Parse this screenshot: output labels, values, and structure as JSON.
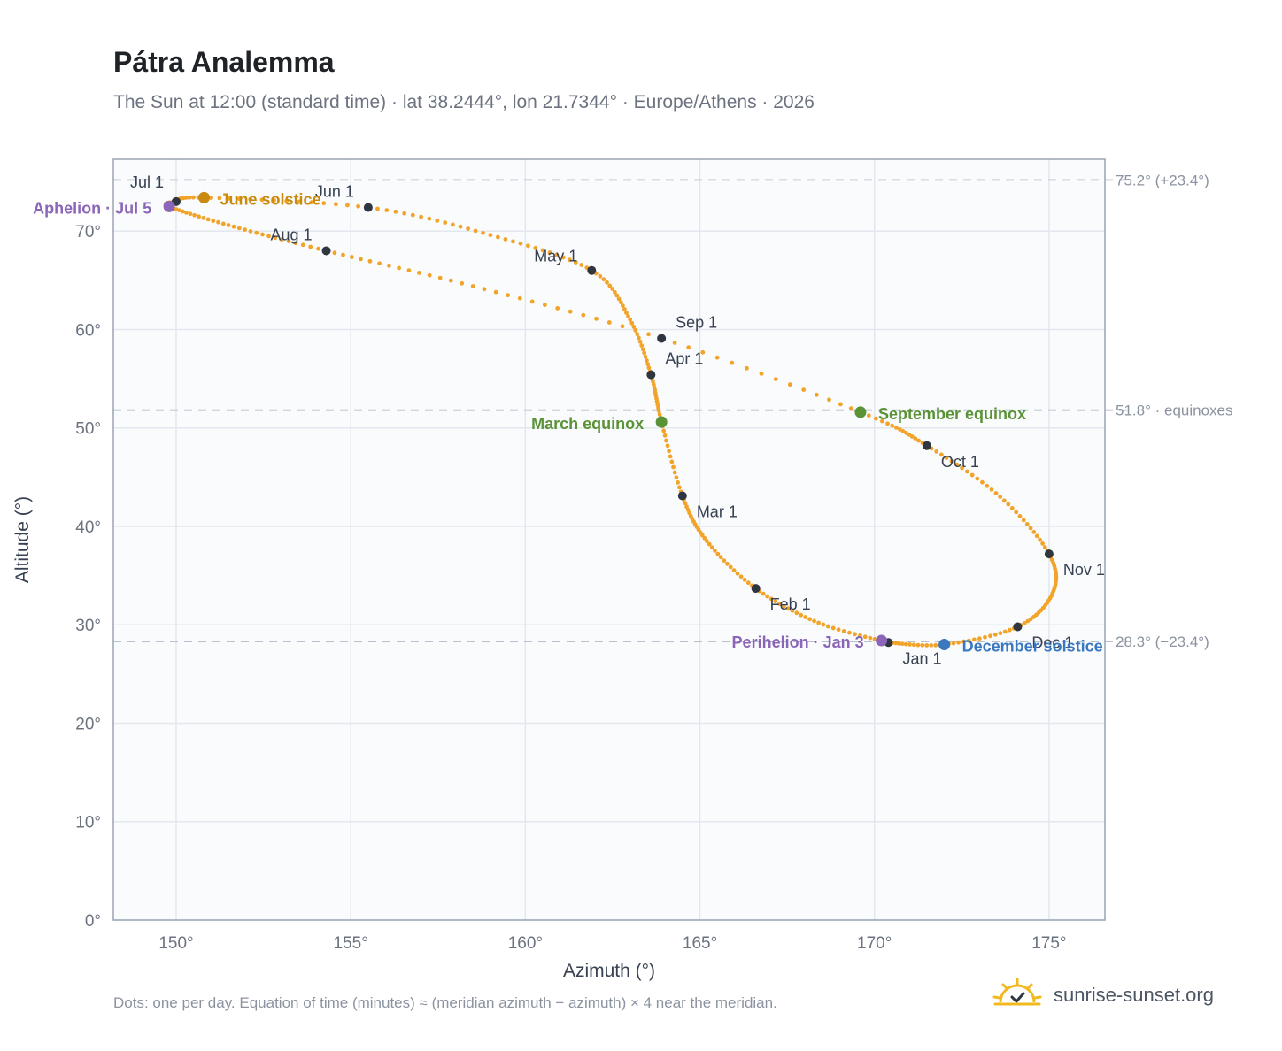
{
  "header": {
    "title": "Pátra Analemma",
    "subtitle": "The Sun at 12:00 (standard time) · lat 38.2444°, lon 21.7344° · Europe/Athens · 2026"
  },
  "footer": {
    "note": "Dots: one per day. Equation of time (minutes) ≈ (meridian azimuth − azimuth) × 4 near the meridian.",
    "brand": "sunrise-sunset.org",
    "brand_icon": "sun-logo-icon"
  },
  "colors": {
    "path": "#f2a42a",
    "month_dot": "#2f3640",
    "equinox": "#5a9236",
    "june_solstice": "#c98a0e",
    "december_solstice": "#3a78c0",
    "apsis": "#8b66b8",
    "grid": "#e3e8ef",
    "ref_line": "#b8c2ce",
    "plot_bg": "#f9fbfd",
    "frame": "#9aa4b2"
  },
  "chart_data": {
    "type": "scatter",
    "title": "Pátra Analemma",
    "xlabel": "Azimuth (°)",
    "ylabel": "Altitude (°)",
    "xlim": [
      148.2,
      176.6
    ],
    "ylim": [
      0,
      77.3
    ],
    "xticks": [
      150,
      155,
      160,
      165,
      170,
      175
    ],
    "yticks": [
      0,
      10,
      20,
      30,
      40,
      50,
      60,
      70
    ],
    "grid": true,
    "reference_lines": [
      {
        "altitude": 75.2,
        "label": "75.2° (+23.4°)"
      },
      {
        "altitude": 51.8,
        "label": "51.8° · equinoxes"
      },
      {
        "altitude": 28.3,
        "label": "28.3° (−23.4°)"
      }
    ],
    "month_markers": [
      {
        "label": "Jan 1",
        "azimuth": 170.4,
        "altitude": 28.2
      },
      {
        "label": "Feb 1",
        "azimuth": 166.6,
        "altitude": 33.7
      },
      {
        "label": "Mar 1",
        "azimuth": 164.5,
        "altitude": 43.1
      },
      {
        "label": "Apr 1",
        "azimuth": 163.6,
        "altitude": 55.4
      },
      {
        "label": "May 1",
        "azimuth": 161.9,
        "altitude": 66.0
      },
      {
        "label": "Jun 1",
        "azimuth": 155.5,
        "altitude": 72.4
      },
      {
        "label": "Jul 1",
        "azimuth": 150.0,
        "altitude": 73.0
      },
      {
        "label": "Aug 1",
        "azimuth": 154.3,
        "altitude": 68.0
      },
      {
        "label": "Sep 1",
        "azimuth": 163.9,
        "altitude": 59.1
      },
      {
        "label": "Oct 1",
        "azimuth": 171.5,
        "altitude": 48.2
      },
      {
        "label": "Nov 1",
        "azimuth": 175.0,
        "altitude": 37.2
      },
      {
        "label": "Dec 1",
        "azimuth": 174.1,
        "altitude": 29.8
      }
    ],
    "events": [
      {
        "label": "March equinox",
        "azimuth": 163.9,
        "altitude": 50.6,
        "color_key": "equinox"
      },
      {
        "label": "June solstice",
        "azimuth": 150.8,
        "altitude": 73.4,
        "color_key": "june_solstice"
      },
      {
        "label": "September equinox",
        "azimuth": 169.6,
        "altitude": 51.6,
        "color_key": "equinox"
      },
      {
        "label": "December solstice",
        "azimuth": 172.0,
        "altitude": 28.0,
        "color_key": "december_solstice"
      },
      {
        "label": "Perihelion · Jan 3",
        "azimuth": 170.2,
        "altitude": 28.4,
        "color_key": "apsis"
      },
      {
        "label": "Aphelion · Jul 5",
        "azimuth": 149.8,
        "altitude": 72.5,
        "color_key": "apsis"
      }
    ],
    "daily_path_control": [
      [
        170.4,
        28.2
      ],
      [
        168.4,
        30.2
      ],
      [
        166.6,
        33.7
      ],
      [
        165.2,
        38.5
      ],
      [
        164.5,
        43.1
      ],
      [
        163.9,
        50.6
      ],
      [
        163.6,
        55.4
      ],
      [
        163.0,
        61.0
      ],
      [
        161.9,
        66.0
      ],
      [
        159.0,
        69.6
      ],
      [
        155.5,
        72.4
      ],
      [
        150.8,
        73.4
      ],
      [
        150.0,
        73.0
      ],
      [
        149.8,
        72.5
      ],
      [
        151.5,
        70.6
      ],
      [
        154.3,
        68.0
      ],
      [
        158.5,
        64.4
      ],
      [
        163.9,
        59.1
      ],
      [
        169.6,
        51.6
      ],
      [
        171.5,
        48.2
      ],
      [
        173.6,
        43.0
      ],
      [
        175.0,
        37.2
      ],
      [
        175.1,
        33.2
      ],
      [
        174.1,
        29.8
      ],
      [
        172.0,
        28.0
      ],
      [
        170.4,
        28.2
      ]
    ]
  }
}
